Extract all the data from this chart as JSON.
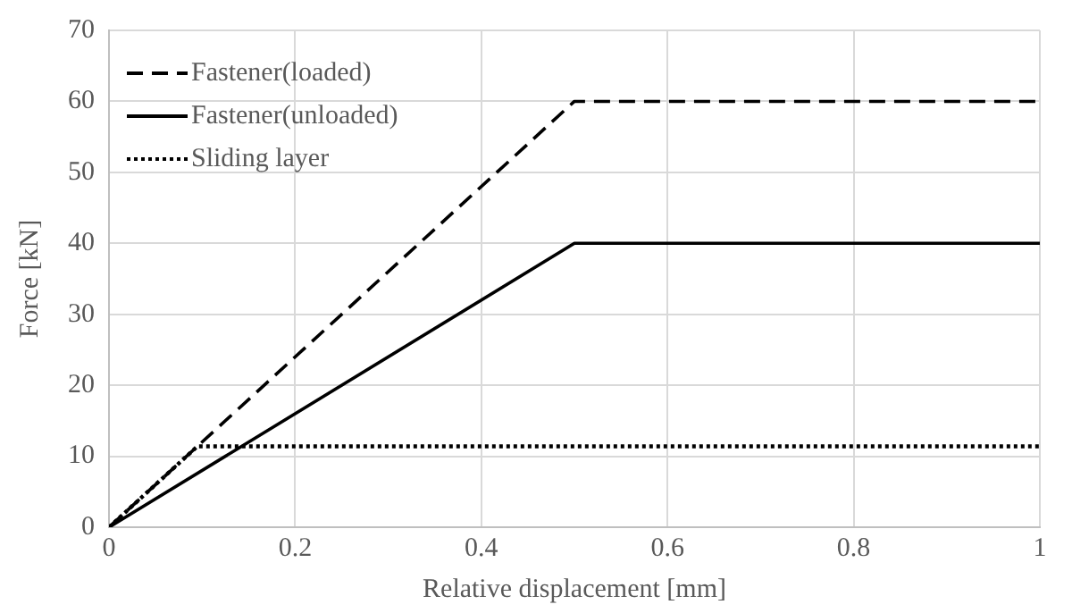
{
  "chart_data": {
    "type": "line",
    "xlabel": "Relative displacement [mm]",
    "ylabel": "Force [kN]",
    "xlim": [
      0,
      1
    ],
    "xticks": [
      0,
      0.2,
      0.4,
      0.6,
      0.8,
      1
    ],
    "ylim": [
      0,
      70
    ],
    "yticks": [
      0,
      10,
      20,
      30,
      40,
      50,
      60,
      70
    ],
    "grid": true,
    "legend": "top left",
    "marker": "none",
    "series": [
      {
        "name": "Fastener(loaded)",
        "color": "#000000",
        "line_style": "dashed",
        "x": [
          0,
          0.5,
          1
        ],
        "values": [
          0,
          60,
          60
        ]
      },
      {
        "name": "Fastener(unloaded)",
        "color": "#000000",
        "line_style": "solid",
        "x": [
          0,
          0.5,
          1
        ],
        "values": [
          0,
          40,
          40
        ]
      },
      {
        "name": "Sliding layer",
        "color": "#000000",
        "line_style": "dotted",
        "x": [
          0,
          0.095,
          1
        ],
        "values": [
          0,
          11.4,
          11.4
        ]
      }
    ]
  }
}
